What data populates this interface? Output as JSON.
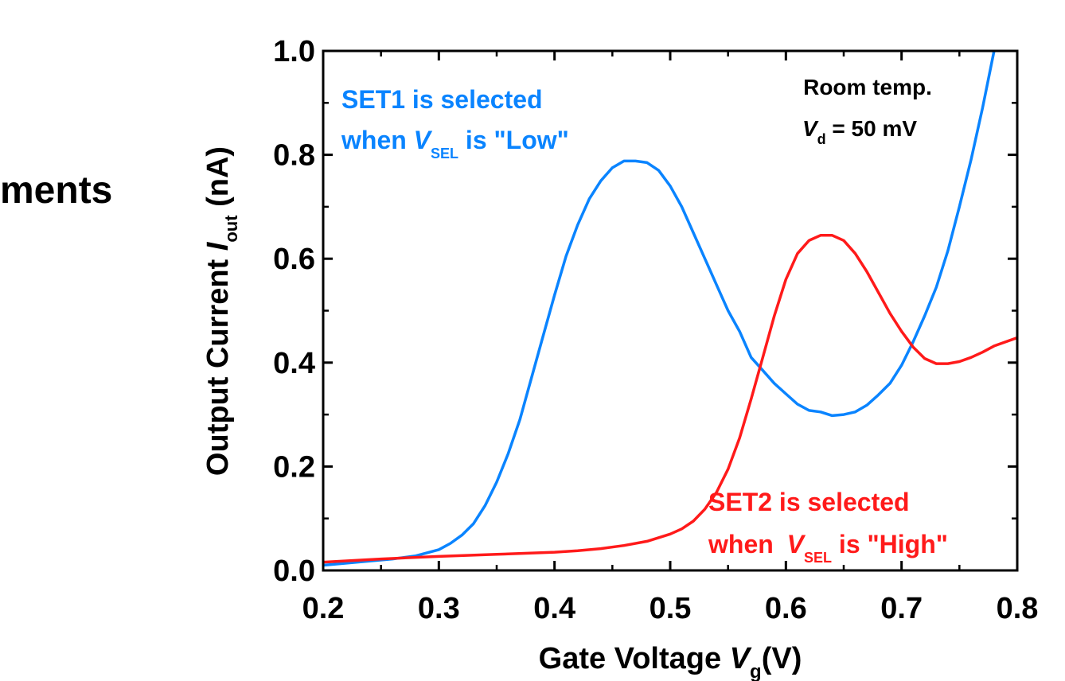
{
  "side_text": "ments",
  "chart_data": {
    "type": "line",
    "xlabel": {
      "main": "Gate Voltage ",
      "var": "V",
      "sub": "g",
      "unit": "(V)"
    },
    "ylabel": {
      "main": "Output Current ",
      "var": "I",
      "sub": "out",
      "unit": " (nA)"
    },
    "xlim": [
      0.2,
      0.8
    ],
    "ylim": [
      0.0,
      1.0
    ],
    "xticks": [
      "0.2",
      "0.3",
      "0.4",
      "0.5",
      "0.6",
      "0.7",
      "0.8"
    ],
    "yticks": [
      "0.0",
      "0.2",
      "0.4",
      "0.6",
      "0.8",
      "1.0"
    ],
    "grid": false,
    "colors": {
      "set1": "#0a84ff",
      "set2": "#ff1a1a",
      "axis": "#000000"
    },
    "annotations": {
      "condition_line1": "Room temp.",
      "condition_var": "V",
      "condition_sub": "d",
      "condition_rest": " = 50 mV",
      "set1_line1": "SET1 is selected",
      "set1_when": "when ",
      "set1_var": "V",
      "set1_sub": "SEL",
      "set1_rest": " is \"Low\"",
      "set2_line1": "SET2 is selected",
      "set2_when": "when ",
      "set2_var": "V",
      "set2_sub": "SEL",
      "set2_rest": " is \"High\""
    },
    "series": [
      {
        "key": "set1",
        "x": [
          0.2,
          0.22,
          0.24,
          0.26,
          0.28,
          0.3,
          0.31,
          0.32,
          0.33,
          0.34,
          0.35,
          0.36,
          0.37,
          0.38,
          0.39,
          0.4,
          0.41,
          0.42,
          0.43,
          0.44,
          0.45,
          0.46,
          0.47,
          0.48,
          0.49,
          0.5,
          0.51,
          0.52,
          0.53,
          0.54,
          0.55,
          0.56,
          0.57,
          0.58,
          0.59,
          0.6,
          0.61,
          0.62,
          0.63,
          0.64,
          0.65,
          0.66,
          0.67,
          0.68,
          0.69,
          0.7,
          0.71,
          0.72,
          0.73,
          0.74,
          0.75,
          0.76,
          0.77,
          0.78
        ],
        "y": [
          0.01,
          0.014,
          0.018,
          0.022,
          0.028,
          0.04,
          0.052,
          0.068,
          0.09,
          0.125,
          0.17,
          0.225,
          0.29,
          0.37,
          0.45,
          0.53,
          0.605,
          0.665,
          0.715,
          0.75,
          0.775,
          0.788,
          0.788,
          0.785,
          0.77,
          0.74,
          0.7,
          0.65,
          0.6,
          0.55,
          0.5,
          0.46,
          0.41,
          0.385,
          0.36,
          0.34,
          0.32,
          0.308,
          0.305,
          0.298,
          0.3,
          0.305,
          0.318,
          0.338,
          0.36,
          0.395,
          0.44,
          0.49,
          0.545,
          0.615,
          0.7,
          0.79,
          0.89,
          1.0
        ]
      },
      {
        "key": "set2",
        "x": [
          0.2,
          0.25,
          0.3,
          0.35,
          0.4,
          0.42,
          0.44,
          0.46,
          0.48,
          0.5,
          0.51,
          0.52,
          0.53,
          0.54,
          0.55,
          0.56,
          0.57,
          0.58,
          0.59,
          0.6,
          0.61,
          0.62,
          0.63,
          0.64,
          0.65,
          0.66,
          0.67,
          0.68,
          0.69,
          0.7,
          0.71,
          0.72,
          0.73,
          0.74,
          0.75,
          0.76,
          0.77,
          0.78,
          0.8
        ],
        "y": [
          0.016,
          0.022,
          0.027,
          0.031,
          0.035,
          0.038,
          0.042,
          0.048,
          0.056,
          0.07,
          0.08,
          0.095,
          0.118,
          0.15,
          0.195,
          0.255,
          0.33,
          0.41,
          0.49,
          0.56,
          0.61,
          0.635,
          0.645,
          0.645,
          0.635,
          0.61,
          0.575,
          0.535,
          0.495,
          0.46,
          0.43,
          0.408,
          0.398,
          0.398,
          0.402,
          0.41,
          0.42,
          0.432,
          0.448
        ]
      }
    ]
  }
}
